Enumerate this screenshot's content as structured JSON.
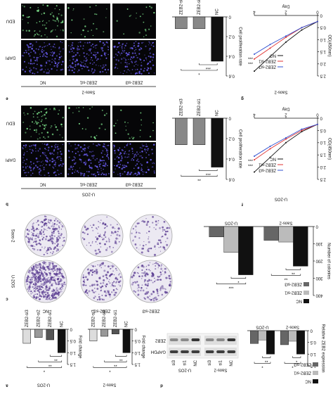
{
  "figure": {
    "panel_labels": [
      "a",
      "d",
      "c",
      "b",
      "f",
      "e",
      "g"
    ],
    "edu": {
      "rows": [
        "EDU",
        "DAPI"
      ],
      "columns": [
        "NC",
        "ZEB2-si1",
        "ZEB2-si3"
      ],
      "cell_lines": [
        "Saos-2",
        "U-2OS"
      ]
    },
    "colony": {
      "rows": [
        "Saos-2",
        "U-2OS"
      ],
      "columns": [
        "NC",
        "ZEB2-si1",
        "ZEB2-si3"
      ]
    },
    "blot": {
      "proteins": [
        "ZEB2",
        "GAPDH"
      ],
      "cell_lines": [
        "U-2OS",
        "Saos-2"
      ],
      "lanes": [
        "NC",
        "si1",
        "si3"
      ]
    }
  },
  "chart_data": [
    {
      "type": "bar",
      "title": "U-2OS",
      "ylabel": "Fold change",
      "categories": [
        "NC",
        "ZEB2-si1",
        "ZEB2-si2",
        "ZEB2-si3"
      ],
      "values": [
        1,
        0.45,
        0.35,
        0.6
      ],
      "colors": [
        "#111111",
        "#555555",
        "#999999",
        "#dddddd"
      ],
      "ylim": [
        0,
        1.5
      ],
      "yticks": [
        0,
        0.5,
        {
          "value": 1,
          "label": "1.0"
        },
        1.5
      ],
      "annotations": [
        "**",
        "**",
        "*"
      ]
    },
    {
      "type": "bar",
      "title": "Saos-2",
      "ylabel": "Fold change",
      "categories": [
        "NC",
        "ZEB2-si1",
        "ZEB2-si2",
        "ZEB2-si3"
      ],
      "values": [
        1,
        0.2,
        0.3,
        0.5
      ],
      "colors": [
        "#111111",
        "#555555",
        "#999999",
        "#dddddd"
      ],
      "ylim": [
        0,
        1.5
      ],
      "yticks": [
        0,
        0.5,
        {
          "value": 1,
          "label": "1.0"
        },
        1.5
      ],
      "annotations": [
        "**",
        "**",
        "*"
      ]
    },
    {
      "type": "grouped-bar",
      "ylabel": "Relative ZEB2 expression",
      "categories": [
        "Saos-2",
        "U-2OS"
      ],
      "series": [
        {
          "name": "NC",
          "color": "#111111",
          "values": [
            1,
            1
          ]
        },
        {
          "name": "ZEB2-si1",
          "color": "#bbbbbb",
          "values": [
            0.45,
            0.4
          ]
        },
        {
          "name": "ZEB2-si3",
          "color": "#666666",
          "values": [
            0.6,
            0.55
          ]
        }
      ],
      "ylim": [
        0,
        1.5
      ],
      "yticks": [
        0,
        0.5,
        {
          "value": 1,
          "label": "1.0"
        },
        1.5
      ],
      "annotations": [
        [
          "*",
          "*"
        ],
        [
          "**",
          "*"
        ]
      ]
    },
    {
      "type": "grouped-bar",
      "ylabel": "Number of colonies",
      "categories": [
        "Saos-2",
        "U-2OS"
      ],
      "series": [
        {
          "name": "NC",
          "color": "#111111",
          "values": [
            230,
            280
          ]
        },
        {
          "name": "ZEB2-si1",
          "color": "#bbbbbb",
          "values": [
            90,
            150
          ]
        },
        {
          "name": "ZEB2-si3",
          "color": "#666666",
          "values": [
            80,
            60
          ]
        }
      ],
      "ylim": [
        0,
        400
      ],
      "yticks": [
        0,
        100,
        200,
        300,
        400
      ],
      "annotations": [
        [
          "**",
          "**"
        ],
        [
          "*",
          "***"
        ]
      ]
    },
    {
      "type": "bar",
      "ylabel": "Cell proliferation rate",
      "categories": [
        "NC",
        "ZEB2-si1",
        "ZEB2-si3"
      ],
      "values": [
        0.48,
        0.26,
        0.26
      ],
      "colors": [
        "#111111",
        "#888888",
        "#888888"
      ],
      "ylim": [
        0,
        0.6
      ],
      "yticks": [
        0,
        0.2,
        0.4,
        0.6
      ],
      "annotations": [
        "***",
        "**"
      ]
    },
    {
      "type": "bar",
      "ylabel": "Cell proliferation rate",
      "categories": [
        "NC",
        "ZEB2-si1",
        "ZEB2-si3"
      ],
      "values": [
        0.45,
        0.12,
        0.12
      ],
      "colors": [
        "#111111",
        "#888888",
        "#888888"
      ],
      "ylim": [
        0,
        0.6
      ],
      "yticks": [
        0,
        0.2,
        0.4,
        0.6
      ],
      "annotations": [
        "***",
        "*"
      ]
    },
    {
      "type": "line",
      "title": "U-2OS",
      "xlabel": "Day",
      "ylabel": "OD(450nm)",
      "x": [
        0,
        1,
        2,
        3,
        4
      ],
      "series": [
        {
          "name": "NC",
          "color": "#111111",
          "values": [
            0.25,
            0.55,
            1.0,
            1.6,
            2.2
          ]
        },
        {
          "name": "ZEB2-si1",
          "color": "#e03030",
          "values": [
            0.25,
            0.5,
            0.85,
            1.25,
            1.7
          ]
        },
        {
          "name": "ZEB2-si3",
          "color": "#3050d0",
          "values": [
            0.25,
            0.45,
            0.8,
            1.15,
            1.55
          ]
        }
      ],
      "xlim": [
        0,
        4
      ],
      "xticks": [
        0,
        2,
        4
      ],
      "ylim": [
        0,
        2.5
      ],
      "yticks": [
        0,
        0.5,
        {
          "value": 1,
          "label": "1.0"
        },
        1.5,
        {
          "value": 2,
          "label": "2.0"
        },
        2.5
      ],
      "annotations": [
        "***",
        "***"
      ]
    },
    {
      "type": "line",
      "title": "Saos-2",
      "xlabel": "Day",
      "ylabel": "OD(450nm)",
      "x": [
        0,
        1,
        2,
        3,
        4
      ],
      "series": [
        {
          "name": "NC",
          "color": "#111111",
          "values": [
            0.25,
            0.6,
            1.1,
            1.7,
            2.3
          ]
        },
        {
          "name": "ZEB2-si1",
          "color": "#e03030",
          "values": [
            0.25,
            0.5,
            0.9,
            1.35,
            1.8
          ]
        },
        {
          "name": "ZEB2-si3",
          "color": "#3050d0",
          "values": [
            0.25,
            0.5,
            0.85,
            1.2,
            1.6
          ]
        }
      ],
      "xlim": [
        0,
        4
      ],
      "xticks": [
        0,
        2,
        4
      ],
      "ylim": [
        0,
        2.5
      ],
      "yticks": [
        0,
        0.5,
        {
          "value": 1,
          "label": "1.0"
        },
        1.5,
        {
          "value": 2,
          "label": "2.0"
        },
        2.5
      ],
      "annotations": [
        "***",
        "***"
      ]
    }
  ]
}
